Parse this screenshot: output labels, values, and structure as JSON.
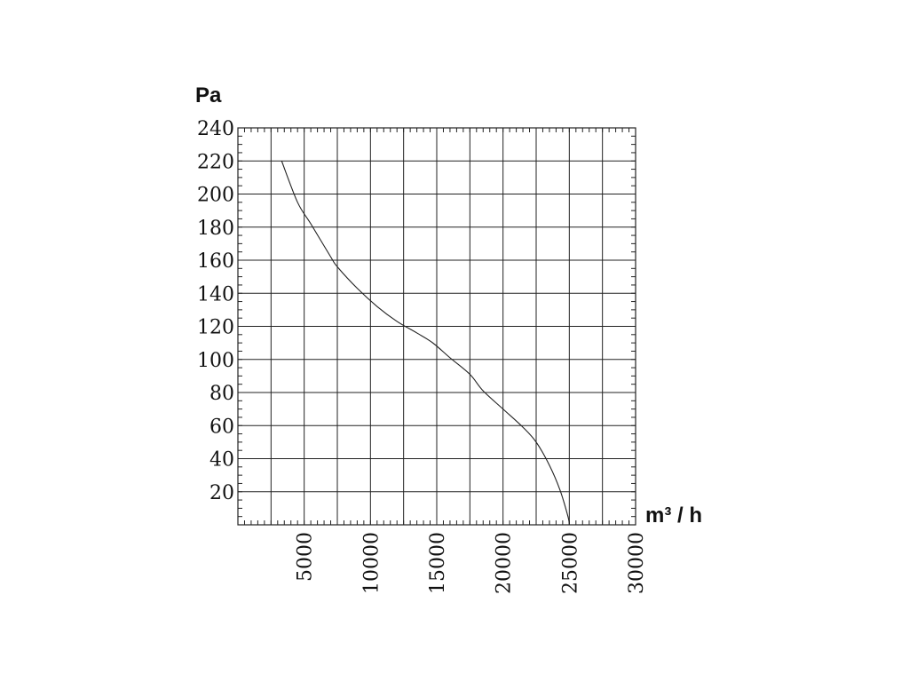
{
  "chart_data": {
    "type": "line",
    "ylabel": "Pa",
    "xlabel": "m³ / h",
    "xlim": [
      0,
      30000
    ],
    "ylim": [
      0,
      240
    ],
    "x_ticks": [
      5000,
      10000,
      15000,
      20000,
      25000,
      30000
    ],
    "y_ticks": [
      20,
      40,
      60,
      80,
      100,
      120,
      140,
      160,
      180,
      200,
      220,
      240
    ],
    "grid": true,
    "series": [
      {
        "values": [
          [
            3300,
            220
          ],
          [
            4500,
            195
          ],
          [
            5500,
            182
          ],
          [
            7000,
            162
          ],
          [
            7500,
            156
          ],
          [
            9000,
            143
          ],
          [
            10500,
            132
          ],
          [
            12000,
            123
          ],
          [
            13500,
            116
          ],
          [
            14700,
            110
          ],
          [
            16000,
            101
          ],
          [
            17500,
            91
          ],
          [
            18500,
            81
          ],
          [
            20000,
            70
          ],
          [
            21500,
            59
          ],
          [
            22500,
            50
          ],
          [
            23500,
            36
          ],
          [
            24300,
            21
          ],
          [
            24900,
            5
          ],
          [
            25000,
            0
          ]
        ]
      }
    ]
  }
}
